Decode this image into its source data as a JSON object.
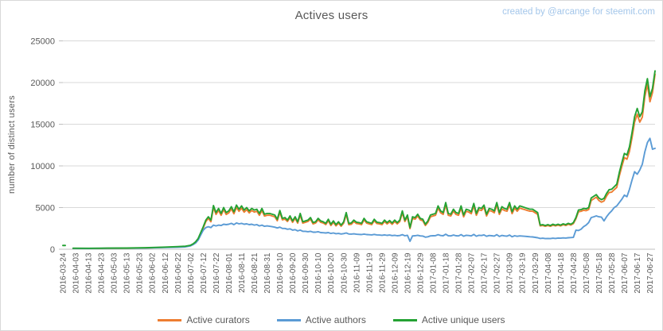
{
  "title": "Actives users",
  "credit": "created by @arcange for steemit.com",
  "colors": {
    "background": "#FFFFFF",
    "border": "#D9D9D9",
    "gridline": "#D9D9D9",
    "axis_line": "#BFBFBF",
    "title_text": "#595959",
    "axis_text": "#595959",
    "credit_text": "#A3C6EA"
  },
  "chart_data": {
    "type": "line",
    "title": "Actives users",
    "xlabel": "",
    "ylabel": "number of distinct users",
    "ylim": [
      0,
      25000
    ],
    "y_ticks": [
      0,
      5000,
      10000,
      15000,
      20000,
      25000
    ],
    "grid": true,
    "legend_position": "bottom",
    "start_date": "2016-03-24",
    "x_tick_interval_days": 10,
    "x_tick_labels": [
      "2016-03-24",
      "2016-04-03",
      "2016-04-13",
      "2016-04-23",
      "2016-05-03",
      "2016-05-13",
      "2016-05-23",
      "2016-06-02",
      "2016-06-12",
      "2016-06-22",
      "2016-07-02",
      "2016-07-12",
      "2016-07-22",
      "2016-08-01",
      "2016-08-11",
      "2016-08-21",
      "2016-08-31",
      "2016-09-10",
      "2016-09-20",
      "2016-09-30",
      "2016-10-10",
      "2016-10-20",
      "2016-10-30",
      "2016-11-09",
      "2016-11-19",
      "2016-11-29",
      "2016-12-09",
      "2016-12-19",
      "2016-12-29",
      "2017-01-08",
      "2017-01-18",
      "2017-01-28",
      "2017-02-07",
      "2017-02-17",
      "2017-02-27",
      "2017-03-09",
      "2017-03-19",
      "2017-03-29",
      "2017-04-08",
      "2017-04-18",
      "2017-04-28",
      "2017-05-08",
      "2017-05-18",
      "2017-05-28",
      "2017-06-07",
      "2017-06-17",
      "2017-06-27"
    ],
    "x_days": [
      8,
      20,
      35,
      50,
      65,
      80,
      90,
      96,
      100,
      102,
      104,
      106,
      108,
      110,
      112,
      114,
      116,
      118,
      120,
      122,
      124,
      126,
      128,
      130,
      132,
      134,
      136,
      138,
      140,
      142,
      144,
      146,
      148,
      150,
      152,
      154,
      156,
      158,
      160,
      162,
      164,
      166,
      168,
      170,
      172,
      174,
      176,
      178,
      180,
      182,
      184,
      186,
      188,
      190,
      192,
      194,
      196,
      198,
      200,
      202,
      204,
      206,
      208,
      210,
      212,
      214,
      216,
      218,
      220,
      222,
      224,
      226,
      228,
      230,
      232,
      234,
      236,
      238,
      240,
      242,
      244,
      246,
      248,
      250,
      252,
      254,
      256,
      258,
      260,
      262,
      264,
      266,
      268,
      270,
      272,
      274,
      276,
      278,
      280,
      282,
      284,
      286,
      288,
      290,
      292,
      294,
      296,
      298,
      300,
      302,
      304,
      306,
      308,
      310,
      312,
      314,
      316,
      318,
      320,
      322,
      324,
      326,
      328,
      330,
      332,
      334,
      336,
      338,
      340,
      342,
      344,
      346,
      348,
      350,
      352,
      354,
      356,
      358,
      360,
      362,
      364,
      366,
      368,
      370,
      372,
      374,
      376,
      378,
      380,
      382,
      384,
      386,
      388,
      390,
      392,
      394,
      396,
      398,
      400,
      402,
      404,
      406,
      408,
      410,
      412,
      414,
      416,
      418,
      420,
      422,
      424,
      426,
      428,
      430,
      432,
      434,
      436,
      438,
      440,
      442,
      444,
      446,
      448,
      450,
      452,
      454,
      456,
      458,
      460,
      462,
      464
    ],
    "series": [
      {
        "name": "Active curators",
        "color": "#ED7D31",
        "values": [
          100,
          90,
          110,
          120,
          155,
          230,
          280,
          330,
          450,
          610,
          850,
          1240,
          1900,
          2550,
          3320,
          3700,
          3300,
          5000,
          4180,
          4660,
          4080,
          4760,
          4170,
          4360,
          4840,
          4260,
          5030,
          4550,
          4930,
          4450,
          4740,
          4360,
          4650,
          4460,
          4560,
          4080,
          4650,
          3980,
          4080,
          4090,
          3990,
          3900,
          3420,
          4420,
          3520,
          3610,
          3330,
          3800,
          3230,
          3700,
          3130,
          4080,
          3130,
          3230,
          3330,
          3610,
          3040,
          3140,
          3520,
          3230,
          3140,
          2950,
          3420,
          2850,
          3230,
          2800,
          3130,
          2760,
          3130,
          4180,
          2950,
          2990,
          3320,
          3090,
          3040,
          2950,
          3520,
          3130,
          3040,
          2950,
          3420,
          3090,
          3040,
          2950,
          3320,
          3040,
          3280,
          2990,
          3320,
          3040,
          3320,
          4370,
          3320,
          3890,
          2480,
          3700,
          3610,
          3990,
          3520,
          3420,
          2850,
          3230,
          3890,
          3990,
          4080,
          4940,
          4370,
          4180,
          5320,
          4080,
          3990,
          4560,
          4180,
          4080,
          4940,
          3890,
          4560,
          4460,
          4270,
          5220,
          4080,
          4750,
          4650,
          5030,
          3990,
          4650,
          4560,
          4370,
          5320,
          4180,
          4840,
          4650,
          4560,
          5320,
          4270,
          4940,
          4560,
          4940,
          4840,
          4750,
          4650,
          4560,
          4560,
          4370,
          4180,
          2800,
          2850,
          2750,
          2850,
          2750,
          2900,
          2800,
          2900,
          2800,
          2950,
          2850,
          3000,
          2900,
          3080,
          3650,
          4500,
          4550,
          4680,
          4630,
          4760,
          5850,
          6050,
          6250,
          5850,
          5650,
          5800,
          6380,
          6810,
          6850,
          7140,
          7420,
          8780,
          9940,
          11000,
          10800,
          11750,
          13400,
          15250,
          16200,
          15250,
          15850,
          18300,
          19770,
          17700,
          18800,
          21000
        ]
      },
      {
        "name": "Active authors",
        "color": "#5B9BD5",
        "values": [
          100,
          95,
          110,
          120,
          150,
          210,
          250,
          290,
          400,
          550,
          750,
          1100,
          1700,
          2300,
          2600,
          2700,
          2600,
          2900,
          2800,
          2900,
          2850,
          3000,
          2950,
          3000,
          3100,
          2950,
          3150,
          3050,
          3100,
          3000,
          3050,
          2950,
          3000,
          2900,
          2950,
          2800,
          2900,
          2750,
          2800,
          2750,
          2700,
          2650,
          2550,
          2650,
          2500,
          2500,
          2400,
          2450,
          2300,
          2350,
          2200,
          2300,
          2150,
          2150,
          2100,
          2150,
          2050,
          2050,
          2100,
          2000,
          1980,
          1950,
          2000,
          1900,
          1950,
          1870,
          1900,
          1830,
          1880,
          1950,
          1830,
          1820,
          1850,
          1800,
          1780,
          1760,
          1820,
          1760,
          1740,
          1720,
          1780,
          1720,
          1700,
          1680,
          1720,
          1670,
          1700,
          1640,
          1680,
          1620,
          1650,
          1750,
          1620,
          1680,
          950,
          1600,
          1620,
          1680,
          1600,
          1580,
          1450,
          1500,
          1600,
          1620,
          1630,
          1750,
          1650,
          1620,
          1800,
          1620,
          1600,
          1700,
          1620,
          1600,
          1750,
          1560,
          1680,
          1650,
          1600,
          1780,
          1560,
          1680,
          1650,
          1720,
          1550,
          1650,
          1620,
          1580,
          1750,
          1530,
          1660,
          1600,
          1570,
          1700,
          1500,
          1620,
          1550,
          1600,
          1580,
          1550,
          1520,
          1500,
          1480,
          1430,
          1380,
          1300,
          1320,
          1280,
          1300,
          1280,
          1320,
          1300,
          1340,
          1320,
          1360,
          1340,
          1380,
          1400,
          1420,
          2300,
          2250,
          2400,
          2700,
          2900,
          3200,
          3800,
          3900,
          4000,
          3900,
          3850,
          3400,
          3900,
          4300,
          4600,
          5000,
          5200,
          5600,
          6000,
          6500,
          6300,
          7200,
          8300,
          9300,
          9000,
          9500,
          10200,
          11700,
          12800,
          13300,
          12000,
          12100
        ]
      },
      {
        "name": "Active unique users",
        "color": "#24A233",
        "leading_point": {
          "day": 0,
          "value": 450
        },
        "values": [
          120,
          110,
          130,
          140,
          180,
          260,
          310,
          360,
          480,
          650,
          900,
          1300,
          2000,
          2700,
          3500,
          3900,
          3500,
          5250,
          4400,
          4900,
          4300,
          5000,
          4400,
          4600,
          5100,
          4500,
          5300,
          4800,
          5200,
          4700,
          5000,
          4600,
          4900,
          4700,
          4800,
          4300,
          4900,
          4200,
          4300,
          4300,
          4200,
          4100,
          3600,
          4650,
          3700,
          3800,
          3500,
          4000,
          3400,
          3900,
          3300,
          4300,
          3300,
          3400,
          3500,
          3800,
          3200,
          3300,
          3700,
          3400,
          3300,
          3100,
          3600,
          3000,
          3400,
          2950,
          3300,
          2900,
          3300,
          4400,
          3100,
          3150,
          3500,
          3250,
          3200,
          3100,
          3700,
          3300,
          3200,
          3100,
          3600,
          3250,
          3200,
          3100,
          3500,
          3200,
          3450,
          3150,
          3500,
          3200,
          3500,
          4600,
          3500,
          4100,
          2610,
          3900,
          3800,
          4200,
          3700,
          3600,
          3000,
          3400,
          4100,
          4200,
          4300,
          5200,
          4600,
          4400,
          5600,
          4300,
          4200,
          4800,
          4400,
          4300,
          5200,
          4100,
          4800,
          4700,
          4500,
          5500,
          4300,
          5000,
          4900,
          5300,
          4200,
          4900,
          4800,
          4600,
          5600,
          4400,
          5100,
          4900,
          4800,
          5600,
          4500,
          5200,
          4800,
          5200,
          5100,
          5000,
          4900,
          4800,
          4800,
          4600,
          4400,
          2900,
          2950,
          2850,
          2950,
          2850,
          3000,
          2900,
          3000,
          2900,
          3050,
          2950,
          3100,
          3000,
          3200,
          3800,
          4700,
          4750,
          4900,
          4850,
          5000,
          6150,
          6350,
          6550,
          6150,
          5950,
          6100,
          6700,
          7150,
          7200,
          7500,
          7800,
          9200,
          10400,
          11500,
          11300,
          12300,
          14000,
          15900,
          16900,
          15900,
          16500,
          19000,
          20470,
          18300,
          19300,
          21400
        ]
      }
    ]
  }
}
